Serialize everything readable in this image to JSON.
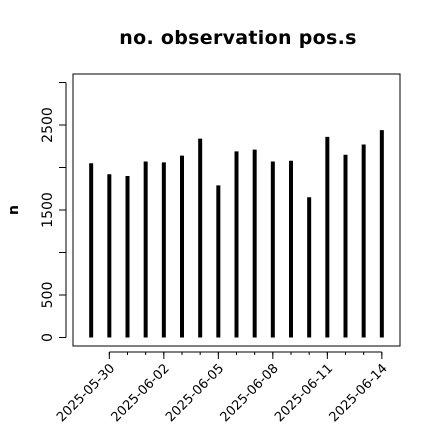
{
  "chart_data": {
    "type": "bar",
    "title": "no. observation pos.s",
    "xlabel": "",
    "ylabel": "n",
    "ylim": [
      -100,
      3100
    ],
    "yticks": [
      0,
      500,
      1500,
      2500
    ],
    "ytick_marks": [
      0,
      500,
      1000,
      1500,
      2000,
      2500,
      3000
    ],
    "x": [
      "2025-05-29",
      "2025-05-30",
      "2025-05-31",
      "2025-06-01",
      "2025-06-02",
      "2025-06-03",
      "2025-06-04",
      "2025-06-05",
      "2025-06-06",
      "2025-06-07",
      "2025-06-08",
      "2025-06-09",
      "2025-06-10",
      "2025-06-11",
      "2025-06-12",
      "2025-06-13",
      "2025-06-14"
    ],
    "values": [
      2050,
      1920,
      1900,
      2070,
      2060,
      2140,
      2340,
      1790,
      2190,
      2210,
      2070,
      2080,
      1650,
      2360,
      2150,
      2270,
      2440
    ],
    "xlim": [
      "2025-05-28",
      "2025-06-15"
    ],
    "xtick_labels": [
      {
        "date": "2025-05-30",
        "label": "2025-05-30",
        "color": "#000000"
      },
      {
        "date": "2025-06-02",
        "label": "2025-06-02",
        "color": "#000000"
      },
      {
        "date": "2025-06-05",
        "label": "2025-06-05",
        "color": "#228B22"
      },
      {
        "date": "2025-06-08",
        "label": "2025-06-08",
        "color": "#000000"
      },
      {
        "date": "2025-06-11",
        "label": "2025-06-11",
        "color": "#000000"
      },
      {
        "date": "2025-06-14",
        "label": "2025-06-14",
        "color": "#000000"
      }
    ],
    "bar_color": "#000000",
    "grid": false,
    "legend": "none"
  }
}
